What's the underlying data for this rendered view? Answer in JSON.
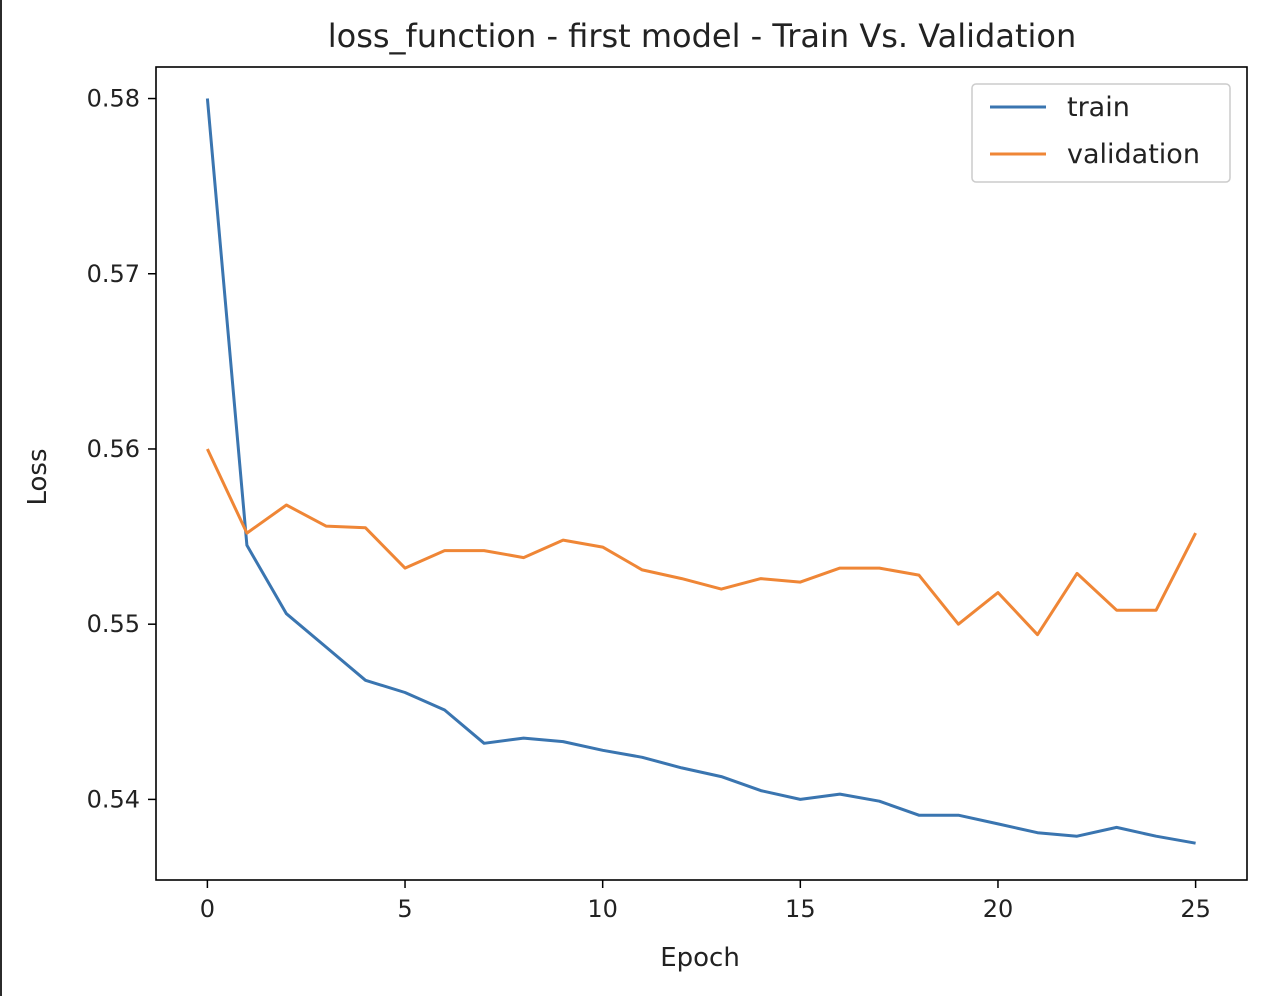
{
  "chart_data": {
    "type": "line",
    "title": "loss_function - first model - Train Vs. Validation",
    "xlabel": "Epoch",
    "ylabel": "Loss",
    "xlim": [
      -1.3,
      26.3
    ],
    "ylim": [
      0.5354,
      0.5818
    ],
    "xticks": [
      0,
      5,
      10,
      15,
      20,
      25
    ],
    "yticks": [
      0.54,
      0.55,
      0.56,
      0.57,
      0.58
    ],
    "ytick_labels": [
      "0.54",
      "0.55",
      "0.56",
      "0.57",
      "0.58"
    ],
    "x": [
      0,
      1,
      2,
      3,
      4,
      5,
      6,
      7,
      8,
      9,
      10,
      11,
      12,
      13,
      14,
      15,
      16,
      17,
      18,
      19,
      20,
      21,
      22,
      23,
      24,
      25
    ],
    "grid": false,
    "legend_position": "upper right",
    "series": [
      {
        "name": "train",
        "color": "#3a75b0",
        "values": [
          0.58,
          0.5545,
          0.5506,
          0.5487,
          0.5468,
          0.5461,
          0.5451,
          0.5432,
          0.5435,
          0.5433,
          0.5428,
          0.5424,
          0.5418,
          0.5413,
          0.5405,
          0.54,
          0.5403,
          0.5399,
          0.5391,
          0.5391,
          0.5386,
          0.5381,
          0.5379,
          0.5384,
          0.5379,
          0.5375
        ]
      },
      {
        "name": "validation",
        "color": "#ef8636",
        "values": [
          0.56,
          0.5552,
          0.5568,
          0.5556,
          0.5555,
          0.5532,
          0.5542,
          0.5542,
          0.5538,
          0.5548,
          0.5544,
          0.5531,
          0.5526,
          0.552,
          0.5526,
          0.5524,
          0.5532,
          0.5532,
          0.5528,
          0.55,
          0.5518,
          0.5494,
          0.5529,
          0.5508,
          0.5508,
          0.5552
        ]
      }
    ]
  }
}
